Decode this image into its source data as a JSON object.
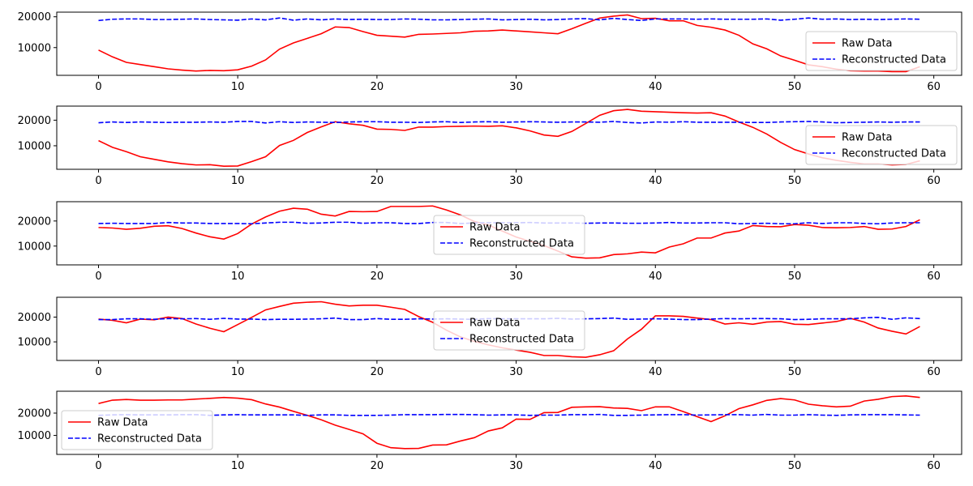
{
  "chart_data": [
    {
      "type": "line",
      "xlim": [
        -3,
        62
      ],
      "ylim": [
        1000,
        21500
      ],
      "xticks": [
        0,
        10,
        20,
        30,
        40,
        50,
        60
      ],
      "yticks": [
        10000,
        20000
      ],
      "legend_position": "right",
      "series": [
        {
          "name": "Raw Data",
          "color": "#ff0000",
          "style": "solid",
          "values": [
            9200,
            7000,
            5200,
            4500,
            3800,
            3100,
            2700,
            2400,
            2600,
            2500,
            2800,
            4000,
            6000,
            9500,
            11500,
            13000,
            14500,
            16700,
            16500,
            15200,
            14000,
            13700,
            13400,
            14300,
            14400,
            14600,
            14800,
            15300,
            15400,
            15700,
            15400,
            15100,
            14800,
            14500,
            16100,
            17900,
            19600,
            20200,
            20600,
            19400,
            19500,
            18700,
            18700,
            17200,
            16600,
            15700,
            14000,
            11200,
            9600,
            7300,
            5900,
            4400,
            3800,
            3000,
            2500,
            2400,
            2400,
            2200,
            2200,
            3800
          ]
        },
        {
          "name": "Reconstructed Data",
          "color": "#0000ff",
          "style": "dashed",
          "values": [
            18800,
            19200,
            19300,
            19300,
            19100,
            19100,
            19200,
            19300,
            19100,
            19000,
            18900,
            19300,
            19000,
            19600,
            18900,
            19300,
            19000,
            19300,
            19100,
            19200,
            19100,
            19100,
            19300,
            19200,
            19000,
            19000,
            19100,
            19200,
            19300,
            19000,
            19100,
            19200,
            19000,
            19100,
            19300,
            19400,
            19000,
            19500,
            19100,
            18800,
            19300,
            19300,
            19300,
            19200,
            19300,
            19200,
            19200,
            19200,
            19300,
            18900,
            19200,
            19600,
            19200,
            19300,
            19100,
            19200,
            19100,
            19200,
            19300,
            19200
          ]
        }
      ]
    },
    {
      "type": "line",
      "xlim": [
        -3,
        62
      ],
      "ylim": [
        800,
        25500
      ],
      "xticks": [
        0,
        10,
        20,
        30,
        40,
        50,
        60
      ],
      "yticks": [
        10000,
        20000
      ],
      "legend_position": "right",
      "series": [
        {
          "name": "Raw Data",
          "color": "#ff0000",
          "style": "solid",
          "values": [
            12000,
            9400,
            7700,
            5700,
            4700,
            3700,
            3000,
            2500,
            2600,
            2000,
            2100,
            3800,
            5700,
            10100,
            12100,
            15200,
            17400,
            19400,
            18600,
            18000,
            16500,
            16400,
            16000,
            17300,
            17300,
            17500,
            17600,
            17700,
            17600,
            17800,
            17000,
            15800,
            14200,
            13700,
            15600,
            18700,
            21900,
            23700,
            24200,
            23500,
            23300,
            23100,
            22900,
            22800,
            22900,
            21600,
            19300,
            17200,
            14600,
            11300,
            8500,
            6800,
            5300,
            4300,
            3500,
            2900,
            2900,
            2500,
            2700,
            4100
          ]
        },
        {
          "name": "Reconstructed Data",
          "color": "#0000ff",
          "style": "dashed",
          "values": [
            19000,
            19300,
            19100,
            19300,
            19200,
            19100,
            19200,
            19200,
            19300,
            19200,
            19500,
            19500,
            18900,
            19400,
            19100,
            19300,
            19200,
            19100,
            19300,
            19400,
            19400,
            19200,
            19200,
            19100,
            19300,
            19400,
            19100,
            19300,
            19400,
            19200,
            19300,
            19400,
            19300,
            19200,
            19300,
            19300,
            19200,
            19500,
            19100,
            18900,
            19300,
            19200,
            19400,
            19200,
            19200,
            19200,
            19200,
            19100,
            19100,
            19300,
            19400,
            19500,
            19300,
            19000,
            19100,
            19200,
            19300,
            19200,
            19300,
            19300
          ]
        }
      ]
    },
    {
      "type": "line",
      "xlim": [
        -3,
        62
      ],
      "ylim": [
        2500,
        27700
      ],
      "xticks": [
        0,
        10,
        20,
        30,
        40,
        50,
        60
      ],
      "yticks": [
        10000,
        20000
      ],
      "legend_position": "center",
      "series": [
        {
          "name": "Raw Data",
          "color": "#ff0000",
          "style": "solid",
          "values": [
            17400,
            17200,
            16700,
            17100,
            17900,
            18100,
            17000,
            15200,
            13700,
            12800,
            15000,
            18800,
            21600,
            23900,
            25100,
            24700,
            22700,
            22000,
            23800,
            23700,
            23800,
            25800,
            25800,
            25800,
            26000,
            24400,
            22400,
            19800,
            18400,
            16000,
            13600,
            11900,
            10200,
            8000,
            5700,
            5200,
            5300,
            6600,
            6900,
            7600,
            7300,
            9600,
            10900,
            13200,
            13200,
            15200,
            16000,
            18200,
            17800,
            17700,
            18600,
            18300,
            17400,
            17300,
            17400,
            17800,
            16700,
            16800,
            17800,
            20500
          ]
        },
        {
          "name": "Reconstructed Data",
          "color": "#0000ff",
          "style": "dashed",
          "values": [
            19000,
            19100,
            19000,
            19000,
            19000,
            19400,
            19200,
            19200,
            19000,
            19000,
            19000,
            18900,
            19200,
            19500,
            19500,
            19100,
            19200,
            19500,
            19500,
            19100,
            19300,
            19300,
            19000,
            19000,
            19400,
            19400,
            19000,
            19200,
            19300,
            19300,
            19300,
            19400,
            19200,
            19200,
            19200,
            19100,
            19200,
            19200,
            19100,
            19100,
            19200,
            19400,
            19200,
            19200,
            19300,
            19300,
            18900,
            19000,
            19100,
            18900,
            18900,
            19300,
            19000,
            19300,
            19300,
            19000,
            18900,
            19200,
            19300,
            19300
          ]
        }
      ]
    },
    {
      "type": "line",
      "xlim": [
        -3,
        62
      ],
      "ylim": [
        2500,
        28000
      ],
      "xticks": [
        0,
        10,
        20,
        30,
        40,
        50,
        60
      ],
      "yticks": [
        10000,
        20000
      ],
      "legend_position": "center",
      "series": [
        {
          "name": "Raw Data",
          "color": "#ff0000",
          "style": "solid",
          "values": [
            19200,
            18700,
            17700,
            19200,
            18900,
            20000,
            19400,
            17200,
            15500,
            14100,
            17000,
            19900,
            22900,
            24300,
            25600,
            26000,
            26200,
            25200,
            24500,
            24800,
            24800,
            24000,
            23100,
            20200,
            17900,
            14700,
            12000,
            10200,
            8800,
            7600,
            6700,
            5800,
            4500,
            4500,
            4000,
            3800,
            4800,
            6400,
            11200,
            15100,
            20500,
            20500,
            20300,
            19600,
            19000,
            17200,
            17700,
            17100,
            18000,
            18200,
            17100,
            17000,
            17600,
            18200,
            19500,
            18000,
            15600,
            14300,
            13200,
            16200
          ]
        },
        {
          "name": "Reconstructed Data",
          "color": "#0000ff",
          "style": "dashed",
          "values": [
            19000,
            19000,
            19300,
            19300,
            19100,
            19400,
            19300,
            19400,
            19100,
            19500,
            19200,
            19200,
            19000,
            19100,
            19100,
            19200,
            19300,
            19600,
            19000,
            19000,
            19400,
            19100,
            19100,
            19300,
            19200,
            19300,
            19200,
            19100,
            19400,
            19300,
            19300,
            19300,
            19300,
            19500,
            19200,
            19300,
            19400,
            19600,
            19100,
            19200,
            19300,
            19200,
            19000,
            19000,
            19200,
            19400,
            19300,
            19400,
            19400,
            19300,
            19000,
            19100,
            19300,
            19300,
            19300,
            19700,
            19900,
            19100,
            19700,
            19400
          ]
        }
      ]
    },
    {
      "type": "line",
      "xlim": [
        -3,
        62
      ],
      "ylim": [
        1500,
        29800
      ],
      "xticks": [
        0,
        10,
        20,
        30,
        40,
        50,
        60
      ],
      "yticks": [
        10000,
        20000
      ],
      "legend_position": "left",
      "series": [
        {
          "name": "Raw Data",
          "color": "#ff0000",
          "style": "solid",
          "values": [
            24300,
            25800,
            26100,
            25800,
            25800,
            25900,
            25900,
            26300,
            26600,
            27000,
            26700,
            26000,
            24100,
            22700,
            20800,
            19000,
            17000,
            14600,
            12700,
            10700,
            6500,
            4500,
            4100,
            4200,
            5700,
            5800,
            7500,
            9000,
            12000,
            13400,
            17300,
            17200,
            20200,
            20300,
            22600,
            22800,
            22900,
            22300,
            22100,
            21100,
            22800,
            22800,
            20700,
            18400,
            16200,
            18800,
            22000,
            23700,
            25700,
            26500,
            25900,
            24000,
            23300,
            22800,
            23100,
            25400,
            26200,
            27400,
            27700,
            27000
          ]
        },
        {
          "name": "Reconstructed Data",
          "color": "#0000ff",
          "style": "dashed",
          "values": [
            19000,
            19200,
            19300,
            19200,
            19200,
            19200,
            19300,
            19300,
            19000,
            19200,
            19300,
            19200,
            19200,
            19200,
            19200,
            19000,
            19200,
            19200,
            19000,
            19000,
            19000,
            19100,
            19300,
            19300,
            19300,
            19400,
            19400,
            19300,
            19100,
            19200,
            19200,
            19000,
            19100,
            19100,
            19300,
            19300,
            19400,
            19000,
            19000,
            19100,
            19200,
            19300,
            19300,
            19100,
            19200,
            19300,
            19300,
            19100,
            19400,
            19100,
            19100,
            19300,
            19100,
            19000,
            19200,
            19300,
            19300,
            19300,
            19200,
            19100
          ]
        }
      ]
    }
  ]
}
